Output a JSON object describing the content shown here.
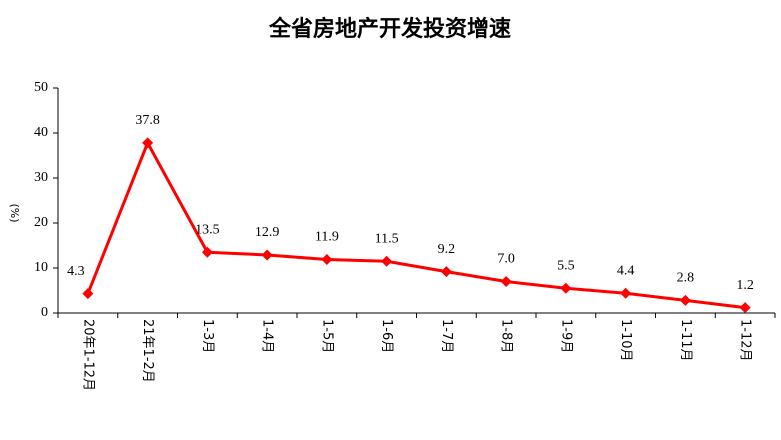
{
  "chart_data": {
    "type": "line",
    "title": "全省房地产开发投资增速",
    "ylabel": "(%)",
    "categories": [
      "20年1-12月",
      "21年1-2月",
      "1-3月",
      "1-4月",
      "1-5月",
      "1-6月",
      "1-7月",
      "1-8月",
      "1-9月",
      "1-10月",
      "1-11月",
      "1-12月"
    ],
    "values": [
      4.3,
      37.8,
      13.5,
      12.9,
      11.9,
      11.5,
      9.2,
      7.0,
      5.5,
      4.4,
      2.8,
      1.2
    ],
    "value_labels": [
      "4.3",
      "37.8",
      "13.5",
      "12.9",
      "11.9",
      "11.5",
      "9.2",
      "7.0",
      "5.5",
      "4.4",
      "2.8",
      "1.2"
    ],
    "color": "#ff0000",
    "ylim": [
      0,
      50
    ],
    "yticks": [
      0,
      10,
      20,
      30,
      40,
      50
    ],
    "grid": false
  }
}
